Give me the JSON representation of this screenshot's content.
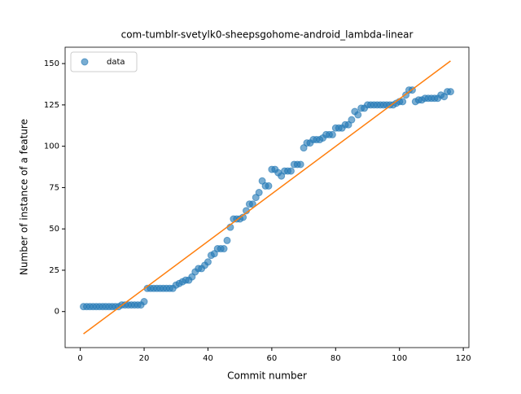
{
  "chart_data": {
    "type": "scatter",
    "title": "com-tumblr-svetylk0-sheepsgohome-android_lambda-linear",
    "xlabel": "Commit number",
    "ylabel": "Number of instance of a feature",
    "x": [
      1,
      2,
      3,
      4,
      5,
      6,
      7,
      8,
      9,
      10,
      11,
      12,
      13,
      14,
      15,
      16,
      17,
      18,
      19,
      20,
      21,
      22,
      23,
      24,
      25,
      26,
      27,
      28,
      29,
      30,
      31,
      32,
      33,
      34,
      35,
      36,
      37,
      38,
      39,
      40,
      41,
      42,
      43,
      44,
      45,
      46,
      47,
      48,
      49,
      50,
      51,
      52,
      53,
      54,
      55,
      56,
      57,
      58,
      59,
      60,
      61,
      62,
      63,
      64,
      65,
      66,
      67,
      68,
      69,
      70,
      71,
      72,
      73,
      74,
      75,
      76,
      77,
      78,
      79,
      80,
      81,
      82,
      83,
      84,
      85,
      86,
      87,
      88,
      89,
      90,
      91,
      92,
      93,
      94,
      95,
      96,
      97,
      98,
      99,
      100,
      101,
      102,
      103,
      104,
      105,
      106,
      107,
      108,
      109,
      110,
      111,
      112,
      113,
      114,
      115,
      116
    ],
    "series": [
      {
        "name": "data",
        "color": "#1f77b4",
        "values": [
          3,
          3,
          3,
          3,
          3,
          3,
          3,
          3,
          3,
          3,
          3,
          3,
          4,
          4,
          4,
          4,
          4,
          4,
          4,
          6,
          14,
          14,
          14,
          14,
          14,
          14,
          14,
          14,
          14,
          16,
          17,
          18,
          19,
          19,
          21,
          24,
          26,
          26,
          28,
          30,
          34,
          35,
          38,
          38,
          38,
          43,
          51,
          56,
          56,
          56,
          57,
          61,
          65,
          65,
          69,
          72,
          79,
          76,
          76,
          86,
          86,
          84,
          82,
          85,
          85,
          85,
          89,
          89,
          89,
          99,
          102,
          102,
          104,
          104,
          104,
          105,
          107,
          107,
          107,
          111,
          111,
          111,
          113,
          113,
          116,
          121,
          119,
          123,
          123,
          125,
          125,
          125,
          125,
          125,
          125,
          125,
          125,
          125,
          126,
          127,
          127,
          131,
          134,
          134,
          127,
          128,
          128,
          129,
          129,
          129,
          129,
          129,
          131,
          130,
          133,
          133
        ]
      }
    ],
    "fit": {
      "color": "#ff7f0e",
      "x": [
        1,
        116
      ],
      "values": [
        -13.5,
        151.6
      ]
    },
    "xlim": [
      -4.75,
      121.75
    ],
    "ylim": [
      -21.8,
      159.9
    ],
    "xticks": [
      0,
      20,
      40,
      60,
      80,
      100,
      120
    ],
    "yticks": [
      0,
      25,
      50,
      75,
      100,
      125,
      150
    ],
    "legend": "upper left"
  }
}
